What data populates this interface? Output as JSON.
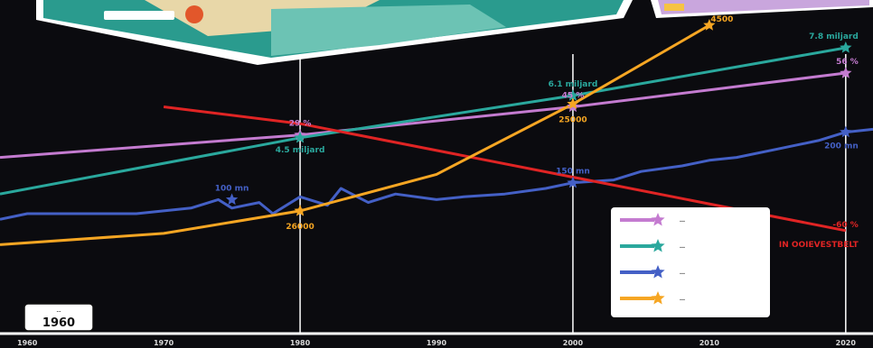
{
  "chart_data": {
    "type": "line",
    "x_ticks": [
      1960,
      1970,
      1980,
      1990,
      2000,
      2010,
      2020
    ],
    "xlim": [
      1958,
      2022
    ],
    "ylim": [
      0,
      100
    ],
    "grid": {
      "vertical_lines_at": [
        1980,
        2000,
        2020
      ]
    },
    "year_badge": {
      "caption": "…",
      "year": "1960"
    },
    "series": [
      {
        "key": "purple",
        "color": "#c47bd0",
        "marker": "star",
        "legend": "…",
        "x": [
          1958,
          1980,
          2000,
          2020
        ],
        "y": [
          53,
          61,
          71,
          83
        ],
        "labels": [
          {
            "x": 1980,
            "y": 61,
            "text": "29 %"
          },
          {
            "x": 2000,
            "y": 71,
            "text": "45 %"
          },
          {
            "x": 2020,
            "y": 83,
            "text": "56 %"
          }
        ]
      },
      {
        "key": "teal",
        "color": "#2aa89d",
        "marker": "star",
        "legend": "…",
        "x": [
          1958,
          1980,
          2000,
          2020
        ],
        "y": [
          40,
          60,
          75,
          92
        ],
        "labels": [
          {
            "x": 1980,
            "y": 60,
            "text": "4.5 miljard"
          },
          {
            "x": 2000,
            "y": 75,
            "text": "6.1 miljard"
          },
          {
            "x": 2020,
            "y": 92,
            "text": "7.8 miljard"
          }
        ]
      },
      {
        "key": "blue",
        "color": "#4460c6",
        "marker": "star",
        "legend": "…",
        "x": [
          1958,
          1960,
          1962,
          1965,
          1968,
          1972,
          1974,
          1975,
          1976,
          1977,
          1978,
          1980,
          1982,
          1983,
          1985,
          1987,
          1990,
          1992,
          1995,
          1998,
          2000,
          2003,
          2005,
          2008,
          2010,
          2012,
          2015,
          2018,
          2020,
          2022
        ],
        "y": [
          31,
          33,
          33,
          33,
          33,
          35,
          38,
          35,
          36,
          37,
          33,
          39,
          36,
          42,
          37,
          40,
          38,
          39,
          40,
          42,
          44,
          45,
          48,
          50,
          52,
          53,
          56,
          59,
          62,
          63
        ],
        "labels": [
          {
            "x": 1975,
            "y": 38,
            "text": "100 mn"
          },
          {
            "x": 2000,
            "y": 44,
            "text": "150 mn"
          },
          {
            "x": 2020,
            "y": 62,
            "text": "200 mn"
          }
        ]
      },
      {
        "key": "red",
        "color": "#e02424",
        "marker": "none",
        "legend": "",
        "x": [
          1970,
          1980,
          2000,
          2020
        ],
        "y": [
          71,
          65,
          46,
          27
        ],
        "labels": [
          {
            "x": 2020,
            "y": 27,
            "text": "-60 %"
          },
          {
            "x": 2020,
            "y": 23,
            "text": "IN OOIEVESTBELT"
          }
        ]
      },
      {
        "key": "orange",
        "color": "#f6a623",
        "marker": "star",
        "legend": "…",
        "x": [
          1958,
          1970,
          1980,
          1990,
          2000,
          2010
        ],
        "y": [
          22,
          26,
          34,
          47,
          72,
          100
        ],
        "labels": [
          {
            "x": 1980,
            "y": 34,
            "text": "26000"
          },
          {
            "x": 2000,
            "y": 72,
            "text": "25000"
          },
          {
            "x": 2010,
            "y": 100,
            "text": "4500"
          }
        ]
      }
    ]
  },
  "colors": {
    "background": "#0b0b0f",
    "axis": "#ffffff",
    "legend_bg": "#ffffff"
  },
  "decor": {
    "top_left": "illustrated-map-banner",
    "top_right": "illustrated-panel"
  }
}
